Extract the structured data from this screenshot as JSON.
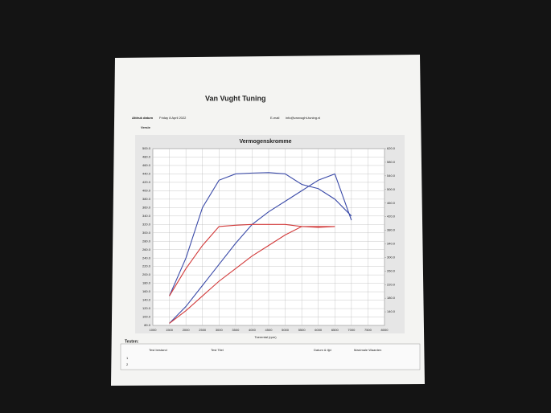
{
  "header": {
    "company": "Van Vught Tuning",
    "email_label": "E-mail",
    "email": "info@vanvught-tuning.nl",
    "print_date_label": "Afdruk datum",
    "print_date": "Friday 8 April 2022",
    "version_label": "Versie"
  },
  "chart_data": {
    "type": "line",
    "title": "Vermogenskromme",
    "xlabel": "Toerental (rpm)",
    "x": [
      1500,
      2000,
      2500,
      3000,
      3500,
      4000,
      4500,
      5000,
      5500,
      6000,
      6500,
      7000
    ],
    "series": [
      {
        "color": "#3a4aa8",
        "values": [
          150,
          240,
          360,
          425,
          440,
          442,
          443,
          440,
          415,
          405,
          380,
          340
        ]
      },
      {
        "color": "#3a4aa8",
        "values": [
          85,
          125,
          175,
          225,
          275,
          320,
          350,
          375,
          400,
          425,
          440,
          330
        ]
      },
      {
        "color": "#d23a3a",
        "values": [
          150,
          215,
          270,
          315,
          318,
          320,
          320,
          320,
          315,
          313,
          315,
          null
        ]
      },
      {
        "color": "#d23a3a",
        "values": [
          85,
          115,
          150,
          185,
          215,
          245,
          270,
          295,
          315,
          315,
          315,
          null
        ]
      }
    ],
    "xlim": [
      1000,
      8000
    ],
    "xticks": [
      1000,
      1500,
      2000,
      2500,
      3000,
      3500,
      4000,
      4500,
      5000,
      5500,
      6000,
      6500,
      7000,
      7500,
      8000
    ],
    "ylim": [
      80,
      500
    ],
    "yticks": [
      {
        "value": 80,
        "label": "80.0"
      },
      {
        "value": 100,
        "label": "100.0"
      },
      {
        "value": 120,
        "label": "120.0"
      },
      {
        "value": 140,
        "label": "140.0"
      },
      {
        "value": 160,
        "label": "160.0"
      },
      {
        "value": 180,
        "label": "180.0"
      },
      {
        "value": 200,
        "label": "200.0"
      },
      {
        "value": 220,
        "label": "220.0"
      },
      {
        "value": 240,
        "label": "240.0"
      },
      {
        "value": 260,
        "label": "260.0"
      },
      {
        "value": 280,
        "label": "280.0"
      },
      {
        "value": 300,
        "label": "300.0"
      },
      {
        "value": 320,
        "label": "320.0"
      },
      {
        "value": 340,
        "label": "340.0"
      },
      {
        "value": 360,
        "label": "360.0"
      },
      {
        "value": 380,
        "label": "380.0"
      },
      {
        "value": 400,
        "label": "400.0"
      },
      {
        "value": 420,
        "label": "420.0"
      },
      {
        "value": 440,
        "label": "440.0"
      },
      {
        "value": 460,
        "label": "460.0"
      },
      {
        "value": 480,
        "label": "480.0"
      },
      {
        "value": 500,
        "label": "500.0"
      }
    ],
    "y2lim": [
      100,
      620
    ],
    "y2ticks": [
      {
        "value": 140,
        "label": "140.0"
      },
      {
        "value": 180,
        "label": "180.0"
      },
      {
        "value": 220,
        "label": "220.0"
      },
      {
        "value": 260,
        "label": "260.0"
      },
      {
        "value": 300,
        "label": "300.0"
      },
      {
        "value": 340,
        "label": "340.0"
      },
      {
        "value": 380,
        "label": "380.0"
      },
      {
        "value": 420,
        "label": "420.0"
      },
      {
        "value": 460,
        "label": "460.0"
      },
      {
        "value": 500,
        "label": "500.0"
      },
      {
        "value": 540,
        "label": "540.0"
      },
      {
        "value": 580,
        "label": "580.0"
      },
      {
        "value": 620,
        "label": "620.0"
      }
    ],
    "grid": true
  },
  "table": {
    "title": "Testen:",
    "headers": [
      "Test bestand",
      "Test Titel",
      "Datum & tijd",
      "Maximale Waarden"
    ],
    "rows": [
      "1",
      "2"
    ]
  }
}
